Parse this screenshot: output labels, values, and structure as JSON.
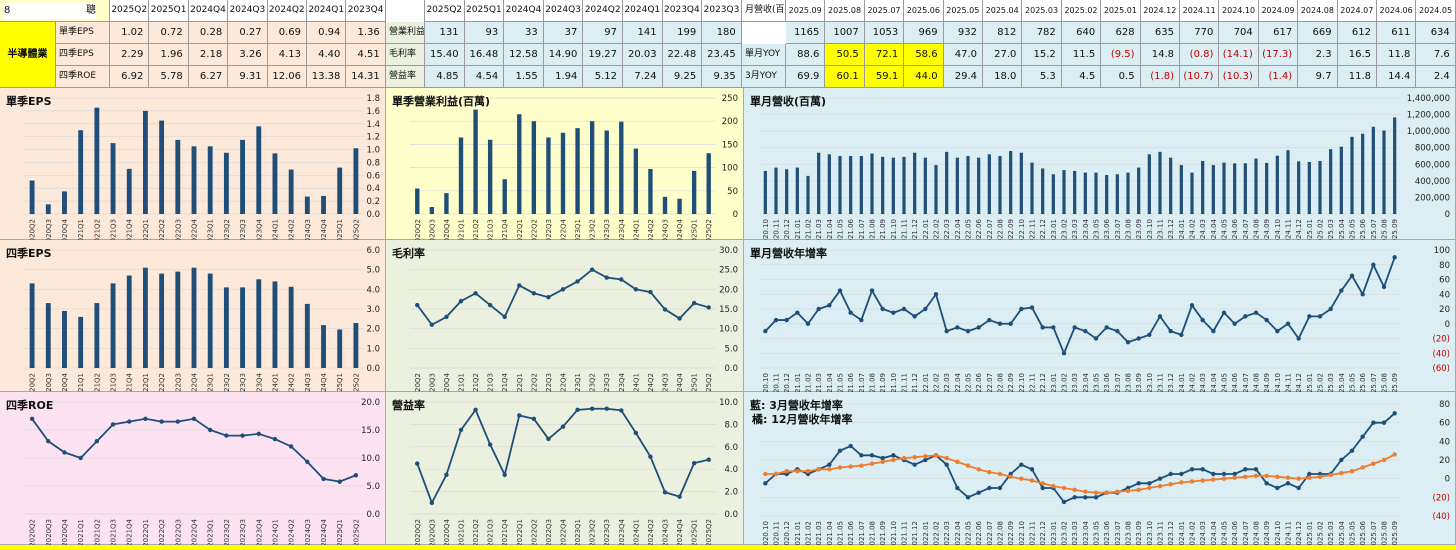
{
  "colors": {
    "bar": "#1f4e79",
    "line_blue": "#1f4e79",
    "line_orange": "#ed7d31",
    "hl_yellow": "#ffff00",
    "neg": "#c00000",
    "bg_peach": "#fde9d9",
    "bg_green": "#ebf1de",
    "bg_blue": "#daeef3",
    "bg_pink": "#fde3f2",
    "bg_yellow": "#ffffcc"
  },
  "header": {
    "code": "8",
    "name": "聰",
    "sector": "半導體業"
  },
  "table_q": {
    "labels": [
      "單季EPS",
      "四季EPS",
      "四季ROE"
    ],
    "cols": [
      "2025Q2",
      "2025Q1",
      "2024Q4",
      "2024Q3",
      "2024Q2",
      "2024Q1",
      "2023Q4"
    ],
    "rows": [
      [
        "1.02",
        "0.72",
        "0.28",
        "0.27",
        "0.69",
        "0.94",
        "1.36"
      ],
      [
        "2.29",
        "1.96",
        "2.18",
        "3.26",
        "4.13",
        "4.40",
        "4.51"
      ],
      [
        "6.92",
        "5.78",
        "6.27",
        "9.31",
        "12.06",
        "13.38",
        "14.31"
      ]
    ]
  },
  "table_p": {
    "labels": [
      "營業利益(百萬)",
      "毛利率",
      "營益率"
    ],
    "cols": [
      "2025Q2",
      "2025Q1",
      "2024Q4",
      "2024Q3",
      "2024Q2",
      "2024Q1",
      "2023Q4",
      "2023Q3"
    ],
    "rows": [
      [
        "131",
        "93",
        "33",
        "37",
        "97",
        "141",
        "199",
        "180"
      ],
      [
        "15.40",
        "16.48",
        "12.58",
        "14.90",
        "19.27",
        "20.03",
        "22.48",
        "23.45"
      ],
      [
        "4.85",
        "4.54",
        "1.55",
        "1.94",
        "5.12",
        "7.24",
        "9.25",
        "9.35"
      ]
    ]
  },
  "table_m": {
    "labels": [
      "月營收(百萬)",
      "單月YOY",
      "3月YOY"
    ],
    "cols": [
      "2025.09",
      "2025.08",
      "2025.07",
      "2025.06",
      "2025.05",
      "2025.04",
      "2025.03",
      "2025.02",
      "2025.01",
      "2024.12",
      "2024.11",
      "2024.10",
      "2024.09",
      "2024.08",
      "2024.07",
      "2024.06",
      "2024.05"
    ],
    "rows": [
      [
        "1165",
        "1007",
        "1053",
        "969",
        "932",
        "812",
        "782",
        "640",
        "628",
        "635",
        "770",
        "704",
        "617",
        "669",
        "612",
        "611",
        "634"
      ],
      [
        "88.6",
        "50.5",
        "72.1",
        "58.6",
        "47.0",
        "27.0",
        "15.2",
        "11.5",
        "(9.5)",
        "14.8",
        "(0.8)",
        "(14.1)",
        "(17.3)",
        "2.3",
        "16.5",
        "11.8",
        "7.6"
      ],
      [
        "69.9",
        "60.1",
        "59.1",
        "44.0",
        "29.4",
        "18.0",
        "5.3",
        "4.5",
        "0.5",
        "(1.8)",
        "(10.7)",
        "(10.3)",
        "(1.4)",
        "9.7",
        "11.8",
        "14.4",
        "2.4"
      ]
    ]
  },
  "chart_data": [
    {
      "id": "c1",
      "type": "bar",
      "title": "單季EPS",
      "ylim": [
        0,
        1.8
      ],
      "ticks": [
        "0.0",
        "0.2",
        "0.4",
        "0.6",
        "0.8",
        "1.0",
        "1.2",
        "1.4",
        "1.6",
        "1.8"
      ],
      "categories": [
        "2020Q2",
        "2020Q3",
        "2020Q4",
        "2021Q1",
        "2021Q2",
        "2021Q3",
        "2021Q4",
        "2022Q1",
        "2022Q2",
        "2022Q3",
        "2022Q4",
        "2023Q1",
        "2023Q2",
        "2023Q3",
        "2023Q4",
        "2024Q1",
        "2024Q2",
        "2024Q3",
        "2024Q4",
        "2025Q1",
        "2025Q2"
      ],
      "values": [
        0.52,
        0.15,
        0.35,
        1.3,
        1.65,
        1.1,
        0.7,
        1.6,
        1.45,
        1.15,
        1.05,
        1.05,
        0.95,
        1.15,
        1.36,
        0.94,
        0.69,
        0.27,
        0.28,
        0.72,
        1.02
      ]
    },
    {
      "id": "c2",
      "type": "bar",
      "title": "單季營業利益(百萬)",
      "ylim": [
        0,
        250
      ],
      "ticks": [
        "0",
        "50",
        "100",
        "150",
        "200",
        "250"
      ],
      "categories": [
        "2020Q2",
        "2020Q3",
        "2020Q4",
        "2021Q1",
        "2021Q2",
        "2021Q3",
        "2021Q4",
        "2022Q1",
        "2022Q2",
        "2022Q3",
        "2022Q4",
        "2023Q1",
        "2023Q2",
        "2023Q3",
        "2023Q4",
        "2024Q1",
        "2024Q2",
        "2024Q3",
        "2024Q4",
        "2025Q1",
        "2025Q2"
      ],
      "values": [
        55,
        15,
        45,
        165,
        225,
        160,
        75,
        215,
        200,
        165,
        175,
        185,
        200,
        180,
        199,
        141,
        97,
        37,
        33,
        93,
        131
      ]
    },
    {
      "id": "c3",
      "type": "bar",
      "title": "單月營收(百萬)",
      "ylim": [
        0,
        1400000
      ],
      "ticks": [
        "0",
        "200,000",
        "400,000",
        "600,000",
        "800,000",
        "1,000,000",
        "1,200,000",
        "1,400,000"
      ],
      "categories": [
        "2020.10",
        "2020.11",
        "2020.12",
        "2021.01",
        "2021.02",
        "2021.03",
        "2021.04",
        "2021.05",
        "2021.06",
        "2021.07",
        "2021.08",
        "2021.09",
        "2021.10",
        "2021.11",
        "2021.12",
        "2022.01",
        "2022.02",
        "2022.03",
        "2022.04",
        "2022.05",
        "2022.06",
        "2022.07",
        "2022.08",
        "2022.09",
        "2022.10",
        "2022.11",
        "2022.12",
        "2023.01",
        "2023.02",
        "2023.03",
        "2023.04",
        "2023.05",
        "2023.06",
        "2023.07",
        "2023.08",
        "2023.09",
        "2023.10",
        "2023.11",
        "2023.12",
        "2024.01",
        "2024.02",
        "2024.03",
        "2024.04",
        "2024.05",
        "2024.06",
        "2024.07",
        "2024.08",
        "2024.09",
        "2024.10",
        "2024.11",
        "2024.12",
        "2025.01",
        "2025.02",
        "2025.03",
        "2025.04",
        "2025.05",
        "2025.06",
        "2025.07",
        "2025.08",
        "2025.09"
      ],
      "values": [
        520000,
        560000,
        540000,
        560000,
        460000,
        740000,
        720000,
        700000,
        700000,
        700000,
        730000,
        690000,
        680000,
        690000,
        740000,
        680000,
        590000,
        750000,
        680000,
        700000,
        680000,
        720000,
        700000,
        760000,
        740000,
        620000,
        550000,
        480000,
        530000,
        520000,
        500000,
        500000,
        470000,
        480000,
        500000,
        560000,
        720000,
        750000,
        680000,
        590000,
        500000,
        640000,
        590000,
        620000,
        611000,
        612000,
        669000,
        617000,
        704000,
        770000,
        635000,
        628000,
        640000,
        782000,
        812000,
        932000,
        969000,
        1053000,
        1007000,
        1165000
      ]
    },
    {
      "id": "c4",
      "type": "bar",
      "title": "四季EPS",
      "ylim": [
        0,
        6
      ],
      "ticks": [
        "0.0",
        "1.0",
        "2.0",
        "3.0",
        "4.0",
        "5.0",
        "6.0"
      ],
      "categories": [
        "2020Q2",
        "2020Q3",
        "2020Q4",
        "2021Q1",
        "2021Q2",
        "2021Q3",
        "2021Q4",
        "2022Q1",
        "2022Q2",
        "2022Q3",
        "2022Q4",
        "2023Q1",
        "2023Q2",
        "2023Q3",
        "2023Q4",
        "2024Q1",
        "2024Q2",
        "2024Q3",
        "2024Q4",
        "2025Q1",
        "2025Q2"
      ],
      "values": [
        4.3,
        3.3,
        2.9,
        2.6,
        3.3,
        4.3,
        4.7,
        5.1,
        4.8,
        4.9,
        5.1,
        4.8,
        4.1,
        4.1,
        4.51,
        4.4,
        4.13,
        3.26,
        2.18,
        1.96,
        2.29
      ]
    },
    {
      "id": "c5",
      "type": "line",
      "title": "毛利率",
      "ylim": [
        0,
        30
      ],
      "ticks": [
        "0.0",
        "5.0",
        "10.0",
        "15.0",
        "20.0",
        "25.0",
        "30.0"
      ],
      "categories": [
        "2020Q2",
        "2020Q3",
        "2020Q4",
        "2021Q1",
        "2021Q2",
        "2021Q3",
        "2021Q4",
        "2022Q1",
        "2022Q2",
        "2022Q3",
        "2022Q4",
        "2023Q1",
        "2023Q2",
        "2023Q3",
        "2023Q4",
        "2024Q1",
        "2024Q2",
        "2024Q3",
        "2024Q4",
        "2025Q1",
        "2025Q2"
      ],
      "values": [
        16,
        11,
        13,
        17,
        19,
        16,
        13,
        21,
        19,
        18,
        20,
        22,
        25,
        23,
        22.5,
        20,
        19.3,
        14.9,
        12.6,
        16.5,
        15.4
      ]
    },
    {
      "id": "c6",
      "type": "line",
      "title": "單月營收年增率",
      "ylim": [
        -60,
        100
      ],
      "ticks": [
        "(60)",
        "(40)",
        "(20)",
        "0",
        "20",
        "40",
        "60",
        "80",
        "100"
      ],
      "categories": [
        "2020.10",
        "2020.11",
        "2020.12",
        "2021.01",
        "2021.02",
        "2021.03",
        "2021.04",
        "2021.05",
        "2021.06",
        "2021.07",
        "2021.08",
        "2021.09",
        "2021.10",
        "2021.11",
        "2021.12",
        "2022.01",
        "2022.02",
        "2022.03",
        "2022.04",
        "2022.05",
        "2022.06",
        "2022.07",
        "2022.08",
        "2022.09",
        "2022.10",
        "2022.11",
        "2022.12",
        "2023.01",
        "2023.02",
        "2023.03",
        "2023.04",
        "2023.05",
        "2023.06",
        "2023.07",
        "2023.08",
        "2023.09",
        "2023.10",
        "2023.11",
        "2023.12",
        "2024.01",
        "2024.02",
        "2024.03",
        "2024.04",
        "2024.05",
        "2024.06",
        "2024.07",
        "2024.08",
        "2024.09",
        "2024.10",
        "2024.11",
        "2024.12",
        "2025.01",
        "2025.02",
        "2025.03",
        "2025.04",
        "2025.05",
        "2025.06",
        "2025.07",
        "2025.08",
        "2025.09"
      ],
      "values": [
        -10,
        5,
        5,
        15,
        0,
        20,
        25,
        45,
        15,
        5,
        45,
        20,
        15,
        20,
        10,
        20,
        40,
        -10,
        -5,
        -10,
        -5,
        5,
        0,
        0,
        20,
        22,
        -5,
        -5,
        -40,
        -5,
        -10,
        -20,
        -5,
        -10,
        -25,
        -20,
        -15,
        10,
        -10,
        -15,
        25,
        5,
        -10,
        15,
        0,
        10,
        15,
        5,
        -10,
        0,
        -20,
        10,
        10,
        20,
        45,
        65,
        40,
        80,
        50,
        90
      ]
    },
    {
      "id": "c7",
      "type": "bar",
      "title": "四季ROE",
      "chart": "line",
      "ylim": [
        0,
        20
      ],
      "ticks": [
        "0.0",
        "5.0",
        "10.0",
        "15.0",
        "20.0"
      ],
      "categories": [
        "2020Q2",
        "2020Q3",
        "2020Q4",
        "2021Q1",
        "2021Q2",
        "2021Q3",
        "2021Q4",
        "2022Q1",
        "2022Q2",
        "2022Q3",
        "2022Q4",
        "2023Q1",
        "2023Q2",
        "2023Q3",
        "2023Q4",
        "2024Q1",
        "2024Q2",
        "2024Q3",
        "2024Q4",
        "2025Q1",
        "2025Q2"
      ],
      "values": [
        17,
        13,
        11,
        10,
        13,
        16,
        16.5,
        17,
        16.5,
        16.5,
        17,
        15,
        14,
        14,
        14.31,
        13.38,
        12.06,
        9.31,
        6.27,
        5.78,
        6.92
      ]
    },
    {
      "id": "c8",
      "type": "line",
      "title": "營益率",
      "ylim": [
        0,
        10
      ],
      "ticks": [
        "0.0",
        "2.0",
        "4.0",
        "6.0",
        "8.0",
        "10.0"
      ],
      "categories": [
        "2020Q2",
        "2020Q3",
        "2020Q4",
        "2021Q1",
        "2021Q2",
        "2021Q3",
        "2021Q4",
        "2022Q1",
        "2022Q2",
        "2022Q3",
        "2022Q4",
        "2023Q1",
        "2023Q2",
        "2023Q3",
        "2023Q4",
        "2024Q1",
        "2024Q2",
        "2024Q3",
        "2024Q4",
        "2025Q1",
        "2025Q2"
      ],
      "values": [
        4.5,
        1.0,
        3.5,
        7.5,
        9.3,
        6.2,
        3.5,
        8.8,
        8.5,
        6.7,
        7.8,
        9.3,
        9.4,
        9.4,
        9.25,
        7.24,
        5.12,
        1.94,
        1.55,
        4.54,
        4.85
      ]
    },
    {
      "id": "c9",
      "type": "line",
      "title": "藍: 3月營收年增率",
      "title2": "橘: 12月營收年增率",
      "ylim": [
        -40,
        80
      ],
      "ticks": [
        "(40)",
        "(20)",
        "0",
        "20",
        "40",
        "60",
        "80"
      ],
      "categories": [
        "2020.10",
        "2020.11",
        "2020.12",
        "2021.01",
        "2021.02",
        "2021.03",
        "2021.04",
        "2021.05",
        "2021.06",
        "2021.07",
        "2021.08",
        "2021.09",
        "2021.10",
        "2021.11",
        "2021.12",
        "2022.01",
        "2022.02",
        "2022.03",
        "2022.04",
        "2022.05",
        "2022.06",
        "2022.07",
        "2022.08",
        "2022.09",
        "2022.10",
        "2022.11",
        "2022.12",
        "2023.01",
        "2023.02",
        "2023.03",
        "2023.04",
        "2023.05",
        "2023.06",
        "2023.07",
        "2023.08",
        "2023.09",
        "2023.10",
        "2023.11",
        "2023.12",
        "2024.01",
        "2024.02",
        "2024.03",
        "2024.04",
        "2024.05",
        "2024.06",
        "2024.07",
        "2024.08",
        "2024.09",
        "2024.10",
        "2024.11",
        "2024.12",
        "2025.01",
        "2025.02",
        "2025.03",
        "2025.04",
        "2025.05",
        "2025.06",
        "2025.07",
        "2025.08",
        "2025.09"
      ],
      "series": [
        {
          "color": "#1f4e79",
          "values": [
            -5,
            5,
            5,
            10,
            5,
            10,
            15,
            30,
            35,
            25,
            25,
            22,
            25,
            20,
            15,
            20,
            25,
            15,
            -10,
            -20,
            -15,
            -10,
            -10,
            5,
            15,
            10,
            -10,
            -10,
            -25,
            -20,
            -20,
            -20,
            -15,
            -15,
            -10,
            -5,
            -5,
            0,
            5,
            5,
            10,
            10,
            5,
            5,
            5,
            10,
            10,
            -5,
            -10,
            -5,
            -10,
            5,
            5,
            5,
            20,
            30,
            45,
            60,
            60,
            70
          ]
        },
        {
          "color": "#ed7d31",
          "values": [
            5,
            5,
            8,
            8,
            8,
            10,
            10,
            12,
            13,
            14,
            16,
            18,
            20,
            22,
            23,
            24,
            25,
            22,
            18,
            14,
            10,
            7,
            5,
            2,
            0,
            -2,
            -5,
            -8,
            -10,
            -12,
            -14,
            -15,
            -15,
            -14,
            -13,
            -12,
            -10,
            -8,
            -6,
            -4,
            -3,
            -2,
            -1,
            0,
            1,
            2,
            3,
            3,
            2,
            1,
            0,
            1,
            2,
            4,
            6,
            8,
            12,
            16,
            20,
            26
          ]
        }
      ]
    }
  ]
}
